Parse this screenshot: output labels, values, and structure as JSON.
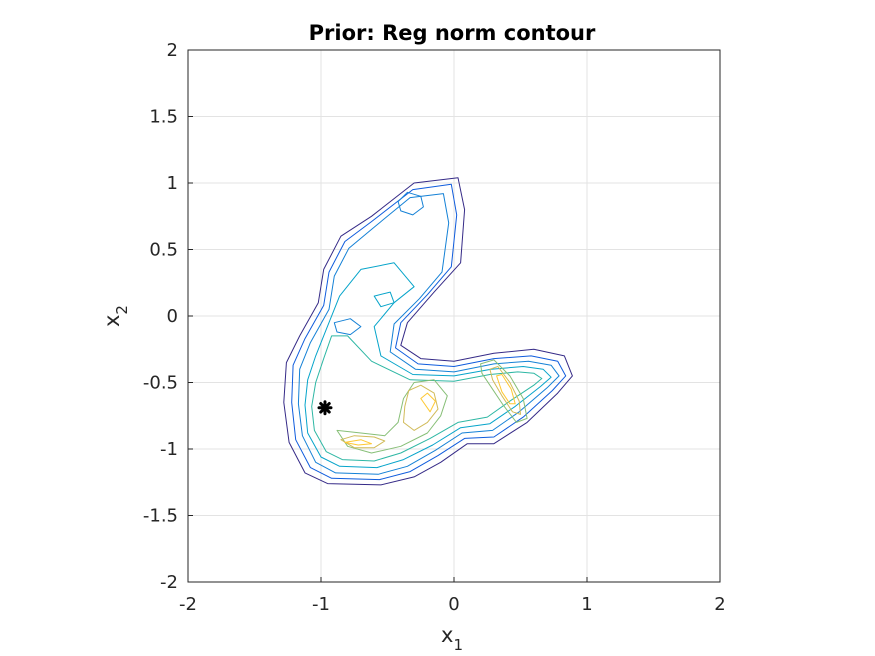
{
  "chart_data": {
    "type": "contour",
    "title": "Prior: Reg norm contour",
    "xlabel": {
      "base": "x",
      "sub": "1"
    },
    "ylabel": {
      "base": "x",
      "sub": "2"
    },
    "xlim": [
      -2,
      2
    ],
    "ylim": [
      -2,
      2
    ],
    "xticks": [
      -2,
      -1,
      0,
      1,
      2
    ],
    "yticks": [
      -2,
      -1.5,
      -1,
      -0.5,
      0,
      0.5,
      1,
      1.5,
      2
    ],
    "xtick_labels": [
      "-2",
      "-1",
      "0",
      "1",
      "2"
    ],
    "ytick_labels": [
      "-2",
      "-1.5",
      "-1",
      "-0.5",
      "0",
      "0.5",
      "1",
      "1.5",
      "2"
    ],
    "grid": true,
    "colormap": "parula",
    "colors": [
      "#352a87",
      "#0f5cdd",
      "#1481d6",
      "#06a4ca",
      "#2eb7a4",
      "#87bf77",
      "#d1bb59",
      "#fec832"
    ],
    "contours": [
      {
        "level": 1,
        "points": [
          [
            -1.28,
            -0.65
          ],
          [
            -1.24,
            -0.95
          ],
          [
            -1.12,
            -1.18
          ],
          [
            -0.95,
            -1.26
          ],
          [
            -0.55,
            -1.27
          ],
          [
            -0.3,
            -1.21
          ],
          [
            -0.1,
            -1.1
          ],
          [
            0.1,
            -0.96
          ],
          [
            0.3,
            -0.96
          ],
          [
            0.55,
            -0.8
          ],
          [
            0.78,
            -0.58
          ],
          [
            0.89,
            -0.45
          ],
          [
            0.83,
            -0.3
          ],
          [
            0.6,
            -0.25
          ],
          [
            0.3,
            -0.28
          ],
          [
            0.0,
            -0.34
          ],
          [
            -0.25,
            -0.32
          ],
          [
            -0.4,
            -0.22
          ],
          [
            -0.35,
            -0.05
          ],
          [
            -0.15,
            0.18
          ],
          [
            0.05,
            0.4
          ],
          [
            0.08,
            0.8
          ],
          [
            0.03,
            1.04
          ],
          [
            -0.3,
            1.0
          ],
          [
            -0.62,
            0.75
          ],
          [
            -0.85,
            0.6
          ],
          [
            -0.98,
            0.35
          ],
          [
            -1.02,
            0.1
          ],
          [
            -1.16,
            -0.15
          ],
          [
            -1.26,
            -0.35
          ]
        ]
      },
      {
        "level": 2,
        "points": [
          [
            -1.22,
            -0.65
          ],
          [
            -1.19,
            -0.93
          ],
          [
            -1.08,
            -1.14
          ],
          [
            -0.92,
            -1.22
          ],
          [
            -0.56,
            -1.23
          ],
          [
            -0.33,
            -1.17
          ],
          [
            -0.12,
            -1.05
          ],
          [
            0.08,
            -0.92
          ],
          [
            0.3,
            -0.91
          ],
          [
            0.52,
            -0.76
          ],
          [
            0.74,
            -0.56
          ],
          [
            0.84,
            -0.45
          ],
          [
            0.78,
            -0.34
          ],
          [
            0.58,
            -0.3
          ],
          [
            0.3,
            -0.32
          ],
          [
            0.0,
            -0.38
          ],
          [
            -0.27,
            -0.36
          ],
          [
            -0.44,
            -0.24
          ],
          [
            -0.4,
            -0.05
          ],
          [
            -0.2,
            0.16
          ],
          [
            -0.02,
            0.37
          ],
          [
            0.02,
            0.76
          ],
          [
            -0.02,
            0.99
          ],
          [
            -0.31,
            0.95
          ],
          [
            -0.62,
            0.71
          ],
          [
            -0.82,
            0.56
          ],
          [
            -0.94,
            0.33
          ],
          [
            -0.98,
            0.08
          ],
          [
            -1.12,
            -0.17
          ],
          [
            -1.21,
            -0.37
          ]
        ]
      },
      {
        "level": 3,
        "points": [
          [
            -1.17,
            -0.66
          ],
          [
            -1.14,
            -0.9
          ],
          [
            -1.04,
            -1.1
          ],
          [
            -0.89,
            -1.18
          ],
          [
            -0.57,
            -1.19
          ],
          [
            -0.35,
            -1.13
          ],
          [
            -0.14,
            -1.01
          ],
          [
            0.06,
            -0.88
          ],
          [
            0.29,
            -0.86
          ],
          [
            0.49,
            -0.72
          ],
          [
            0.7,
            -0.54
          ],
          [
            0.79,
            -0.45
          ],
          [
            0.73,
            -0.37
          ],
          [
            0.56,
            -0.34
          ],
          [
            0.3,
            -0.36
          ],
          [
            0.0,
            -0.42
          ],
          [
            -0.29,
            -0.4
          ],
          [
            -0.48,
            -0.27
          ],
          [
            -0.45,
            -0.06
          ],
          [
            -0.26,
            0.13
          ],
          [
            -0.09,
            0.33
          ],
          [
            -0.04,
            0.7
          ],
          [
            -0.08,
            0.92
          ],
          [
            -0.33,
            0.89
          ],
          [
            -0.61,
            0.66
          ],
          [
            -0.79,
            0.51
          ],
          [
            -0.9,
            0.3
          ],
          [
            -0.94,
            0.05
          ],
          [
            -1.08,
            -0.2
          ],
          [
            -1.16,
            -0.4
          ]
        ]
      },
      {
        "level": 3,
        "points": [
          [
            -0.42,
            0.86
          ],
          [
            -0.35,
            0.93
          ],
          [
            -0.25,
            0.9
          ],
          [
            -0.23,
            0.82
          ],
          [
            -0.31,
            0.76
          ],
          [
            -0.4,
            0.79
          ]
        ]
      },
      {
        "level": 4,
        "points": [
          [
            -1.12,
            -0.67
          ],
          [
            -1.1,
            -0.88
          ],
          [
            -1.0,
            -1.06
          ],
          [
            -0.86,
            -1.13
          ],
          [
            -0.58,
            -1.14
          ],
          [
            -0.38,
            -1.08
          ],
          [
            -0.16,
            -0.97
          ],
          [
            0.05,
            -0.84
          ],
          [
            0.27,
            -0.81
          ],
          [
            0.46,
            -0.68
          ],
          [
            0.65,
            -0.53
          ],
          [
            0.73,
            -0.46
          ],
          [
            0.67,
            -0.4
          ],
          [
            0.52,
            -0.38
          ],
          [
            0.28,
            -0.4
          ],
          [
            0.0,
            -0.45
          ],
          [
            -0.31,
            -0.44
          ],
          [
            -0.55,
            -0.3
          ],
          [
            -0.6,
            -0.08
          ],
          [
            -0.45,
            0.1
          ],
          [
            -0.3,
            0.22
          ],
          [
            -0.45,
            0.4
          ],
          [
            -0.7,
            0.35
          ],
          [
            -0.86,
            0.15
          ],
          [
            -0.96,
            -0.1
          ],
          [
            -1.04,
            -0.3
          ],
          [
            -1.1,
            -0.48
          ]
        ]
      },
      {
        "level": 5,
        "points": [
          [
            -1.07,
            -0.68
          ],
          [
            -1.05,
            -0.86
          ],
          [
            -0.96,
            -1.02
          ],
          [
            -0.84,
            -1.08
          ],
          [
            -0.6,
            -1.09
          ],
          [
            -0.4,
            -1.03
          ],
          [
            -0.18,
            -0.92
          ],
          [
            0.03,
            -0.8
          ],
          [
            0.25,
            -0.76
          ],
          [
            0.42,
            -0.64
          ],
          [
            0.6,
            -0.52
          ],
          [
            0.66,
            -0.47
          ],
          [
            0.6,
            -0.43
          ],
          [
            0.48,
            -0.42
          ],
          [
            0.27,
            -0.44
          ],
          [
            0.0,
            -0.49
          ],
          [
            -0.33,
            -0.48
          ],
          [
            -0.62,
            -0.34
          ],
          [
            -0.8,
            -0.15
          ],
          [
            -0.92,
            -0.15
          ],
          [
            -0.98,
            -0.32
          ],
          [
            -1.04,
            -0.5
          ]
        ]
      },
      {
        "level": 6,
        "points": [
          [
            -0.88,
            -0.86
          ],
          [
            -0.8,
            -0.98
          ],
          [
            -0.62,
            -1.03
          ],
          [
            -0.4,
            -0.98
          ],
          [
            -0.2,
            -0.88
          ],
          [
            -0.1,
            -0.75
          ],
          [
            -0.05,
            -0.6
          ],
          [
            -0.15,
            -0.48
          ],
          [
            -0.3,
            -0.5
          ],
          [
            -0.38,
            -0.62
          ],
          [
            -0.42,
            -0.8
          ],
          [
            -0.52,
            -0.9
          ],
          [
            -0.7,
            -0.88
          ]
        ]
      },
      {
        "level": 7,
        "points": [
          [
            -0.85,
            -0.93
          ],
          [
            -0.75,
            -0.99
          ],
          [
            -0.6,
            -0.99
          ],
          [
            -0.52,
            -0.94
          ],
          [
            -0.6,
            -0.91
          ],
          [
            -0.75,
            -0.9
          ]
        ]
      },
      {
        "level": 7,
        "points": [
          [
            -0.38,
            -0.8
          ],
          [
            -0.3,
            -0.86
          ],
          [
            -0.2,
            -0.8
          ],
          [
            -0.12,
            -0.7
          ],
          [
            -0.15,
            -0.58
          ],
          [
            -0.25,
            -0.52
          ],
          [
            -0.34,
            -0.56
          ],
          [
            -0.37,
            -0.68
          ]
        ]
      },
      {
        "level": 8,
        "points": [
          [
            -0.82,
            -0.95
          ],
          [
            -0.72,
            -0.97
          ],
          [
            -0.62,
            -0.96
          ],
          [
            -0.7,
            -0.93
          ]
        ]
      },
      {
        "level": 8,
        "points": [
          [
            -0.25,
            -0.62
          ],
          [
            -0.18,
            -0.72
          ],
          [
            -0.14,
            -0.64
          ],
          [
            -0.2,
            -0.58
          ]
        ]
      },
      {
        "level": 6,
        "points": [
          [
            0.2,
            -0.36
          ],
          [
            0.3,
            -0.33
          ],
          [
            0.42,
            -0.45
          ],
          [
            0.52,
            -0.62
          ],
          [
            0.55,
            -0.77
          ],
          [
            0.47,
            -0.8
          ],
          [
            0.37,
            -0.67
          ],
          [
            0.27,
            -0.52
          ],
          [
            0.21,
            -0.43
          ]
        ]
      },
      {
        "level": 7,
        "points": [
          [
            0.27,
            -0.4
          ],
          [
            0.33,
            -0.38
          ],
          [
            0.42,
            -0.5
          ],
          [
            0.49,
            -0.64
          ],
          [
            0.5,
            -0.74
          ],
          [
            0.44,
            -0.72
          ],
          [
            0.36,
            -0.6
          ],
          [
            0.29,
            -0.48
          ]
        ]
      },
      {
        "level": 8,
        "points": [
          [
            0.32,
            -0.45
          ],
          [
            0.36,
            -0.44
          ],
          [
            0.43,
            -0.55
          ],
          [
            0.46,
            -0.66
          ],
          [
            0.42,
            -0.66
          ],
          [
            0.36,
            -0.57
          ]
        ]
      },
      {
        "level": 3,
        "points": [
          [
            -0.9,
            -0.05
          ],
          [
            -0.78,
            -0.02
          ],
          [
            -0.7,
            -0.08
          ],
          [
            -0.78,
            -0.14
          ],
          [
            -0.88,
            -0.12
          ]
        ]
      },
      {
        "level": 4,
        "points": [
          [
            -0.6,
            0.15
          ],
          [
            -0.48,
            0.18
          ],
          [
            -0.45,
            0.1
          ],
          [
            -0.55,
            0.07
          ]
        ]
      }
    ],
    "marker": {
      "x": -0.97,
      "y": -0.69,
      "symbol": "asterisk",
      "color": "#000000"
    }
  }
}
